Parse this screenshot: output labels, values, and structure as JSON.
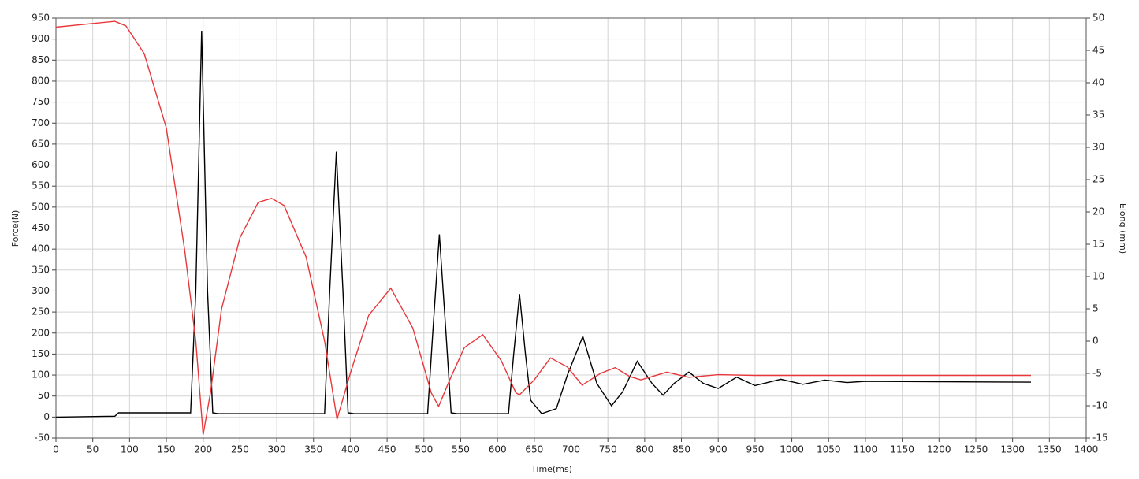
{
  "chart_data": {
    "type": "line",
    "x_label": "Time(ms)",
    "y_label": "Force(N)",
    "y2_label": "Elong (mm)",
    "xlim": [
      0,
      1400
    ],
    "xticks": [
      0,
      50,
      100,
      150,
      200,
      250,
      300,
      350,
      400,
      450,
      500,
      550,
      600,
      650,
      700,
      750,
      800,
      850,
      900,
      950,
      1000,
      1050,
      1100,
      1150,
      1200,
      1250,
      1300,
      1350,
      1400
    ],
    "ylim": [
      -50,
      950
    ],
    "yticks": [
      -50,
      0,
      50,
      100,
      150,
      200,
      250,
      300,
      350,
      400,
      450,
      500,
      550,
      600,
      650,
      700,
      750,
      800,
      850,
      900,
      950
    ],
    "y2lim": [
      -15,
      50
    ],
    "y2ticks": [
      -15,
      -10,
      -5,
      0,
      5,
      10,
      15,
      20,
      25,
      30,
      35,
      40,
      45,
      50
    ],
    "grid": true,
    "series": [
      {
        "color": "#000000",
        "x": [
          0,
          80,
          85,
          183,
          190,
          198,
          206,
          213,
          220,
          365,
          372,
          381,
          390,
          397,
          405,
          505,
          512,
          521,
          530,
          537,
          545,
          615,
          622,
          630,
          638,
          645,
          660,
          680,
          695,
          716,
          735,
          755,
          770,
          790,
          810,
          825,
          840,
          860,
          880,
          900,
          925,
          950,
          985,
          1015,
          1045,
          1075,
          1100,
          1200,
          1325
        ],
        "values": [
          0,
          2,
          10,
          10,
          300,
          920,
          300,
          10,
          8,
          8,
          300,
          632,
          300,
          10,
          8,
          8,
          200,
          435,
          200,
          10,
          8,
          8,
          150,
          293,
          150,
          40,
          8,
          20,
          100,
          192,
          80,
          27,
          60,
          133,
          80,
          52,
          80,
          107,
          80,
          68,
          95,
          75,
          90,
          78,
          88,
          82,
          85,
          84,
          83
        ]
      },
      {
        "color": "#e8383b",
        "axis": "y2",
        "x": [
          0,
          80,
          95,
          120,
          150,
          175,
          190,
          200,
          210,
          225,
          250,
          275,
          293,
          310,
          340,
          365,
          382,
          400,
          425,
          455,
          485,
          510,
          520,
          535,
          555,
          580,
          605,
          625,
          630,
          650,
          672,
          695,
          715,
          740,
          760,
          780,
          795,
          830,
          860,
          900,
          950,
          1000,
          1325
        ],
        "values": [
          48.6,
          49.5,
          48.8,
          44.5,
          33,
          14,
          0,
          -14.5,
          -8,
          5,
          16,
          21.5,
          22.1,
          21,
          13,
          0,
          -12.1,
          -5,
          4,
          8.2,
          2,
          -8,
          -10.1,
          -6,
          -1,
          1,
          -3,
          -8,
          -8.3,
          -6,
          -2.6,
          -4,
          -6.8,
          -5,
          -4.1,
          -5.5,
          -6,
          -4.8,
          -5.6,
          -5.2,
          -5.3,
          -5.3,
          -5.3
        ]
      }
    ]
  }
}
